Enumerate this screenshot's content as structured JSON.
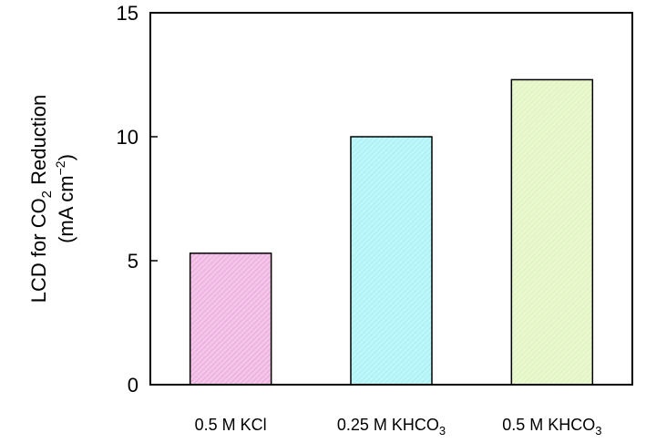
{
  "chart_data": {
    "type": "bar",
    "categories": [
      {
        "main": "0.5 M KCl",
        "sub": ""
      },
      {
        "main": "0.25 M KHCO",
        "sub": "3"
      },
      {
        "main": "0.5 M KHCO",
        "sub": "3"
      }
    ],
    "values": [
      5.3,
      10.0,
      12.3
    ],
    "bar_colors": [
      "#f3bfe6",
      "#b6f6f8",
      "#e6f7c6"
    ],
    "bar_stroke": "#000000",
    "ylim": [
      0,
      15
    ],
    "yticks": [
      0,
      5,
      10,
      15
    ],
    "ylabel": {
      "line1_main": "LCD for CO",
      "line1_sub": "2",
      "line1_tail": " Reduction",
      "line2_main": "(mA cm",
      "line2_sup": "−2",
      "line2_tail": ")"
    },
    "title": "",
    "xlabel": "",
    "grid": false,
    "legend": "none"
  }
}
